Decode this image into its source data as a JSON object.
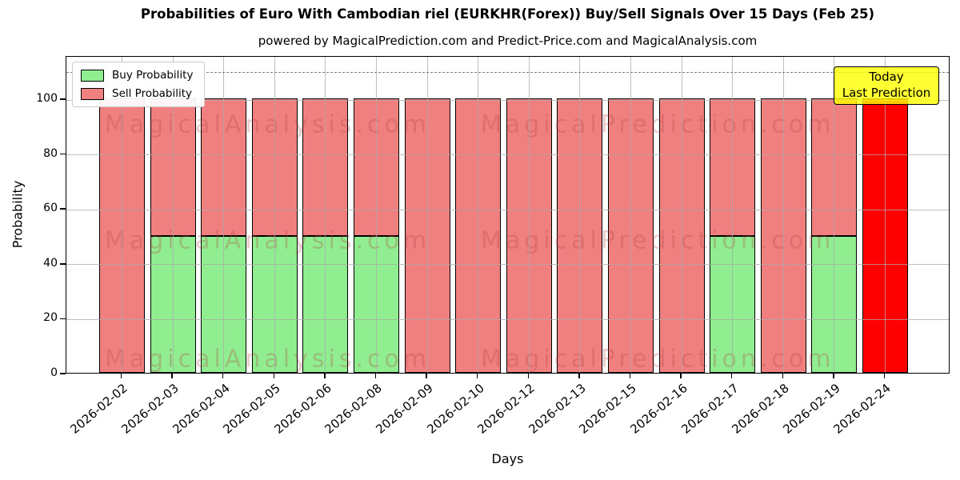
{
  "title": "Probabilities of Euro With Cambodian riel (EURKHR(Forex)) Buy/Sell Signals Over 15 Days (Feb 25)",
  "subtitle": "powered by MagicalPrediction.com and Predict-Price.com and MagicalAnalysis.com",
  "annotation": {
    "lines": [
      "Today",
      "Last Prediction"
    ],
    "bg": "#ffff00",
    "border": "#000000"
  },
  "watermarks": {
    "left": "MagicalAnalysis.com",
    "right": "MagicalPrediction.com"
  },
  "colors": {
    "buy": "#90ee90",
    "sell": "#f08080",
    "today": "#ff0000",
    "grid": "#aaaaaa",
    "dashed_line": "#7f7f7f",
    "annotation_bg": "#ffff00"
  },
  "chart_data": {
    "type": "bar",
    "stacked": true,
    "title": "Probabilities of Euro With Cambodian riel (EURKHR(Forex)) Buy/Sell Signals Over 15 Days (Feb 25)",
    "xlabel": "Days",
    "ylabel": "Probability",
    "ylim": [
      0,
      116
    ],
    "yticks": [
      0,
      20,
      40,
      60,
      80,
      100
    ],
    "dashed_reference_y": 110,
    "grid": true,
    "legend_position": "upper left",
    "categories": [
      "2026-02-02",
      "2026-02-03",
      "2026-02-04",
      "2026-02-05",
      "2026-02-06",
      "2026-02-08",
      "2026-02-09",
      "2026-02-10",
      "2026-02-12",
      "2026-02-13",
      "2026-02-15",
      "2026-02-16",
      "2026-02-17",
      "2026-02-18",
      "2026-02-19",
      "2026-02-24"
    ],
    "series": [
      {
        "name": "Buy Probability",
        "color": "#90ee90",
        "values": [
          0,
          50,
          50,
          50,
          50,
          50,
          0,
          0,
          0,
          0,
          0,
          0,
          50,
          0,
          50,
          0
        ]
      },
      {
        "name": "Sell Probability",
        "color": "#f08080",
        "values": [
          100,
          50,
          50,
          50,
          50,
          50,
          100,
          100,
          100,
          100,
          100,
          100,
          50,
          100,
          50,
          0
        ]
      },
      {
        "name": "Today Last Prediction",
        "color": "#ff0000",
        "values": [
          0,
          0,
          0,
          0,
          0,
          0,
          0,
          0,
          0,
          0,
          0,
          0,
          0,
          0,
          0,
          100
        ]
      }
    ]
  }
}
